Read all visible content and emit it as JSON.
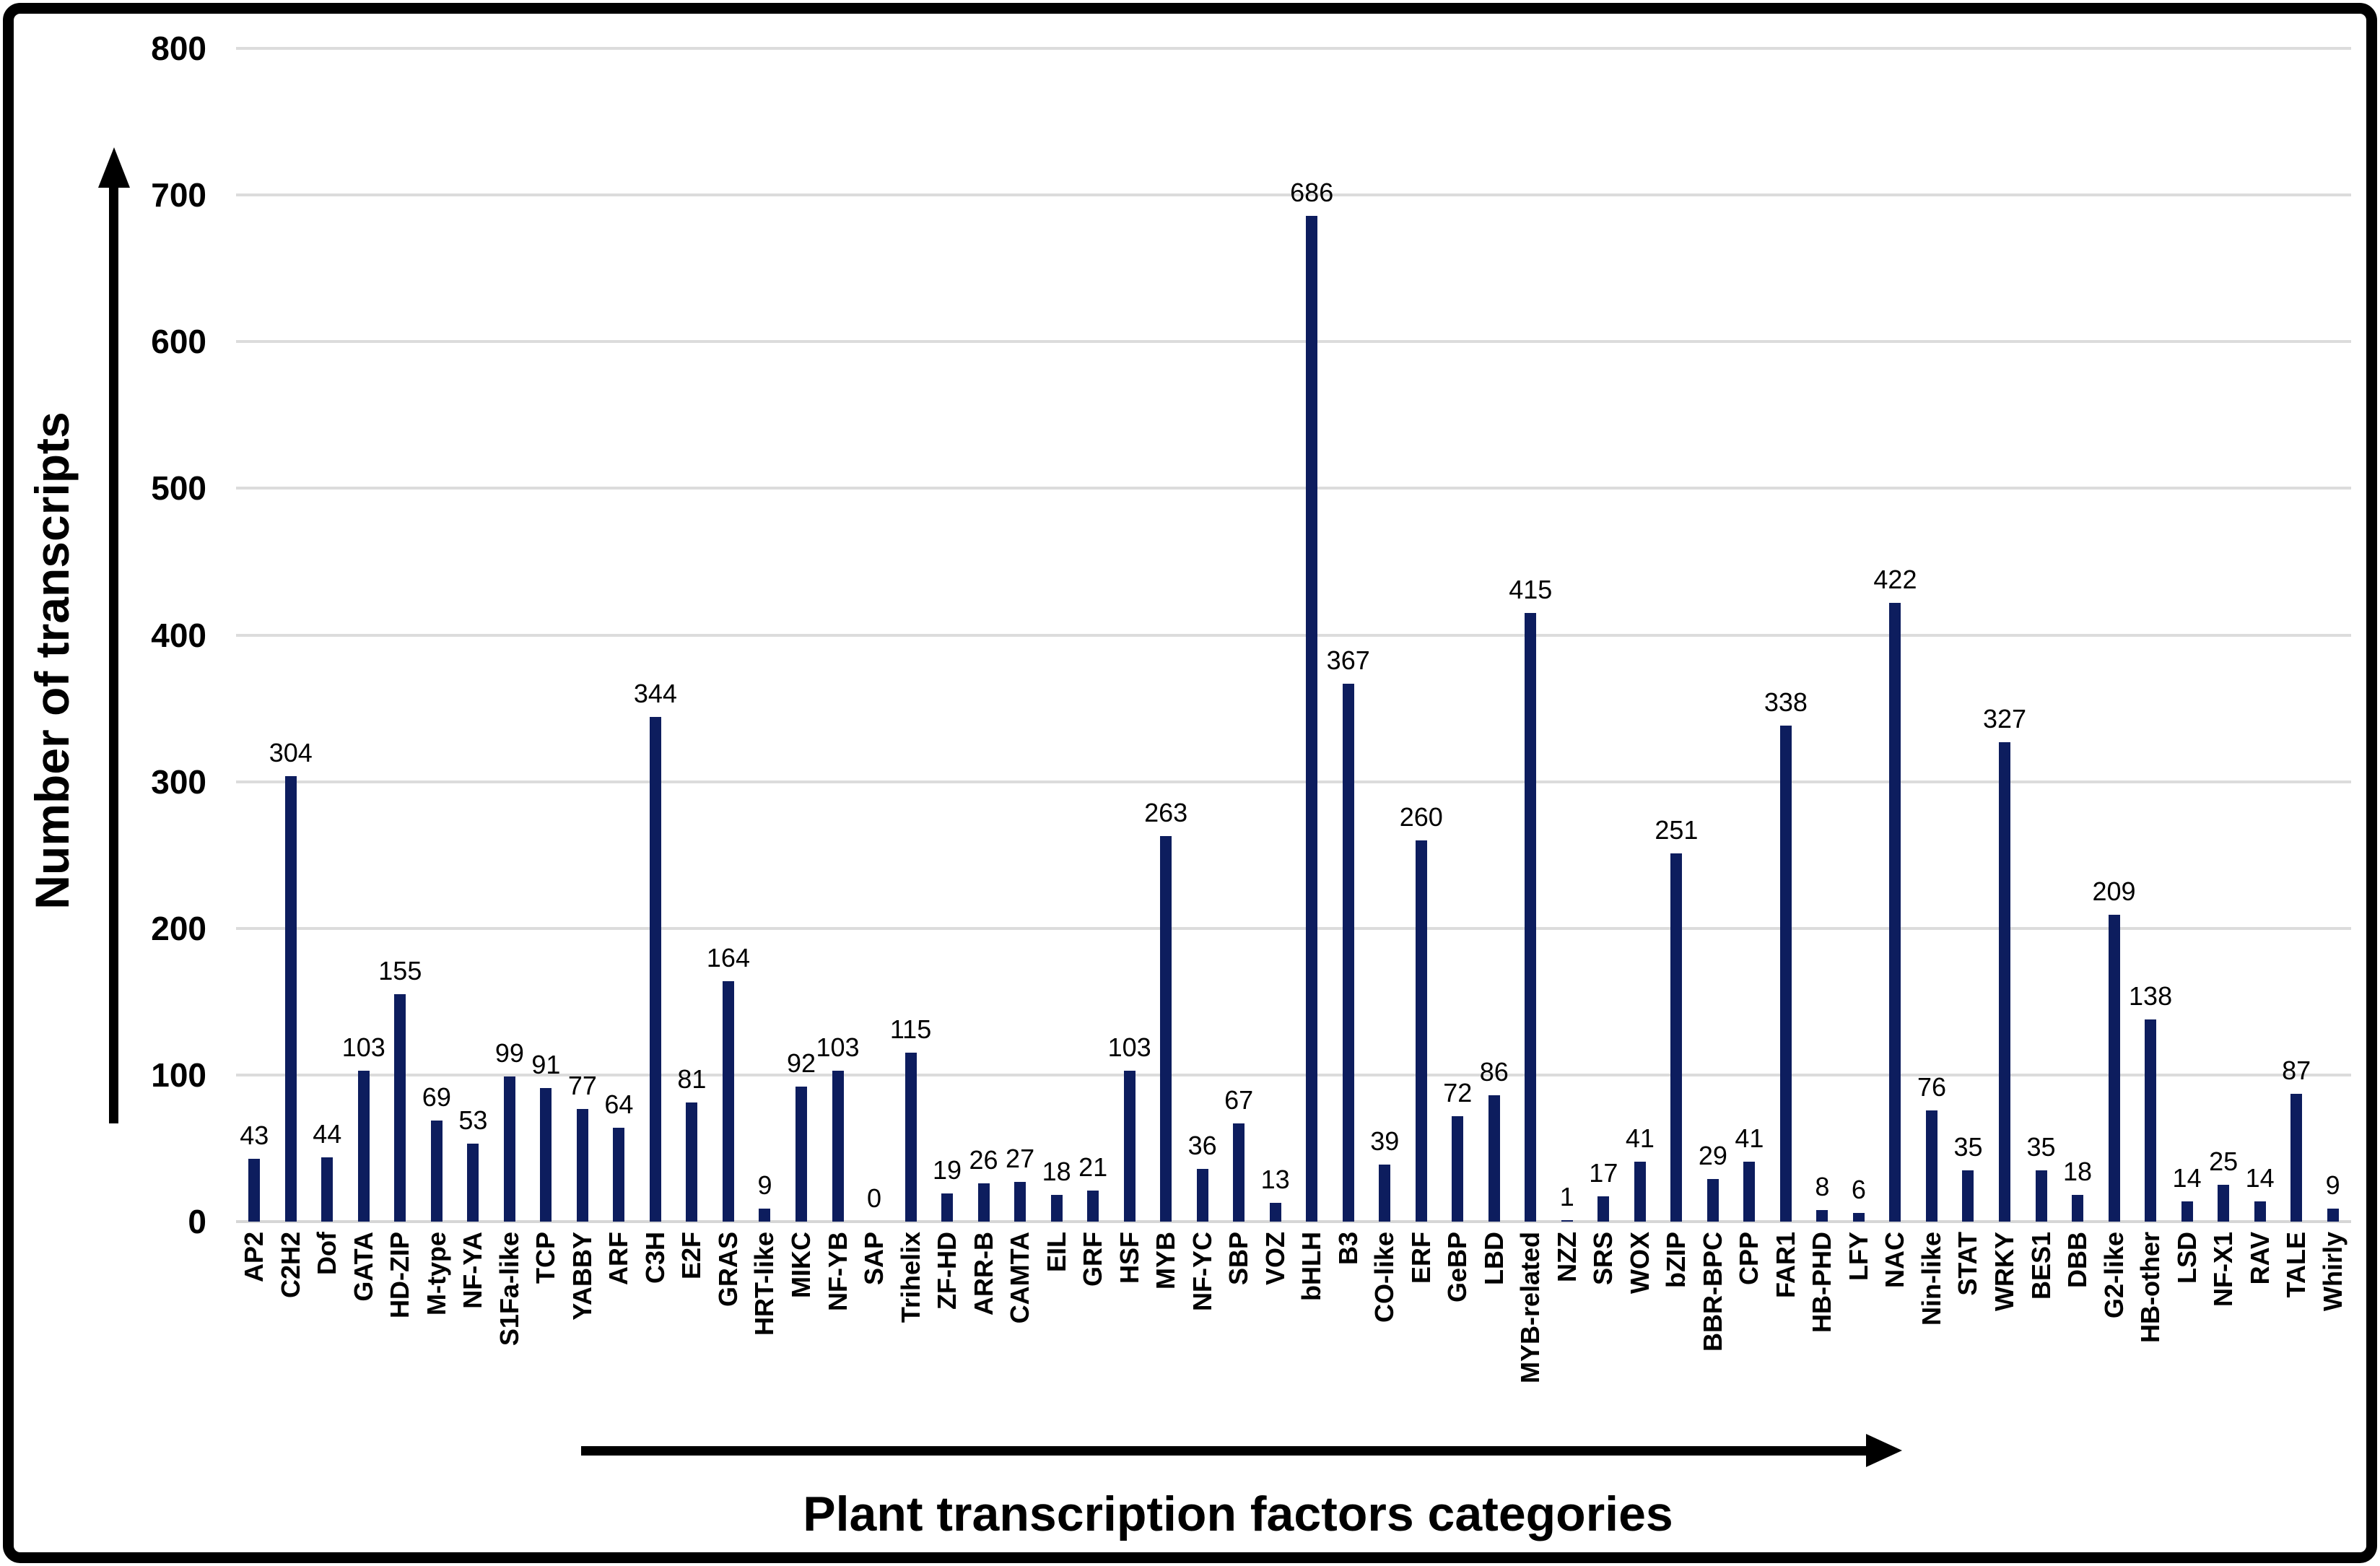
{
  "chart_data": {
    "type": "bar",
    "title": "",
    "xlabel": "Plant transcription factors categories",
    "ylabel": "Number of transcripts",
    "categories": [
      "AP2",
      "C2H2",
      "Dof",
      "GATA",
      "HD-ZIP",
      "M-type",
      "NF-YA",
      "S1Fa-like",
      "TCP",
      "YABBY",
      "ARF",
      "C3H",
      "E2F",
      "GRAS",
      "HRT-like",
      "MIKC",
      "NF-YB",
      "SAP",
      "Trihelix",
      "ZF-HD",
      "ARR-B",
      "CAMTA",
      "EIL",
      "GRF",
      "HSF",
      "MYB",
      "NF-YC",
      "SBP",
      "VOZ",
      "bHLH",
      "B3",
      "CO-like",
      "ERF",
      "GeBP",
      "LBD",
      "MYB-related",
      "NZZ",
      "SRS",
      "WOX",
      "bZIP",
      "BBR-BPC",
      "CPP",
      "FAR1",
      "HB-PHD",
      "LFY",
      "NAC",
      "Nin-like",
      "STAT",
      "WRKY",
      "BES1",
      "DBB",
      "G2-like",
      "HB-other",
      "LSD",
      "NF-X1",
      "RAV",
      "TALE",
      "Whirly"
    ],
    "values": [
      43,
      304,
      44,
      103,
      155,
      69,
      53,
      99,
      91,
      77,
      64,
      344,
      81,
      164,
      9,
      92,
      103,
      0,
      115,
      19,
      26,
      27,
      18,
      21,
      103,
      263,
      36,
      67,
      13,
      686,
      367,
      39,
      260,
      72,
      86,
      415,
      1,
      17,
      41,
      251,
      29,
      41,
      338,
      8,
      6,
      422,
      76,
      35,
      327,
      35,
      18,
      209,
      138,
      14,
      25,
      14,
      87,
      9
    ],
    "ylim": [
      0,
      800
    ],
    "yticks": [
      0,
      100,
      200,
      300,
      400,
      500,
      600,
      700,
      800
    ],
    "grid": "horizontal gridlines at every 100, light gray",
    "legend": "none",
    "value_labels": true,
    "bar_color": "#0d1d5e",
    "gridline_color": "#dcdcdc",
    "text_color": "#000000",
    "background_color": "#ffffff",
    "border_color": "#000000"
  }
}
